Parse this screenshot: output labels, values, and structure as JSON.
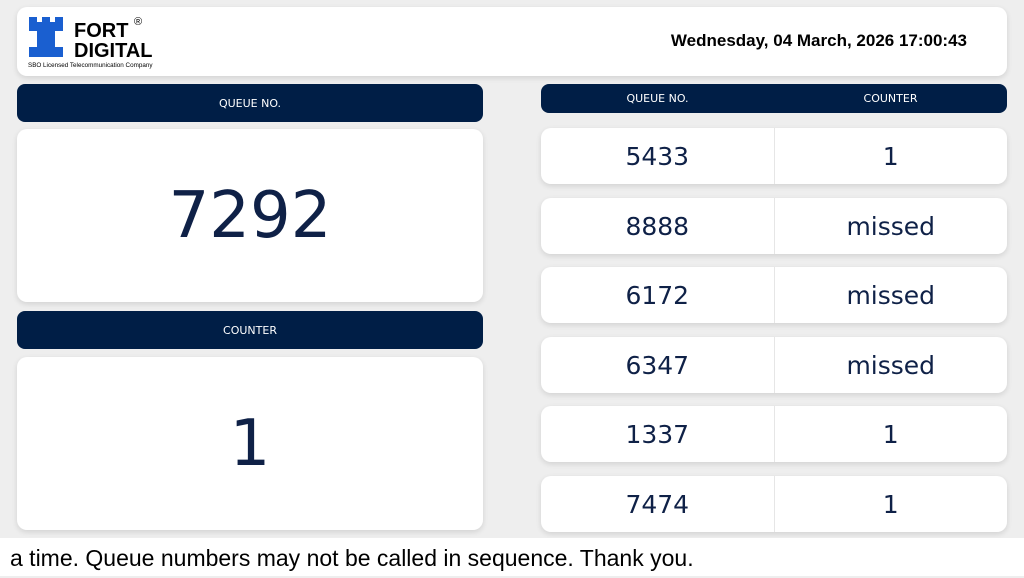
{
  "header": {
    "logo": {
      "line1": "FORT",
      "line2": "DIGITAL",
      "tagline": "SBO Licensed Telecommunication Company",
      "brand_color": "#1a5fd0"
    },
    "datetime": "Wednesday, 04 March, 2026 17:00:43"
  },
  "current": {
    "queue_label": "QUEUE NO.",
    "queue_number": "7292",
    "counter_label": "COUNTER",
    "counter_number": "1"
  },
  "history": {
    "columns": [
      "QUEUE NO.",
      "COUNTER"
    ],
    "rows": [
      {
        "queue": "5433",
        "counter": "1"
      },
      {
        "queue": "8888",
        "counter": "missed"
      },
      {
        "queue": "6172",
        "counter": "missed"
      },
      {
        "queue": "6347",
        "counter": "missed"
      },
      {
        "queue": "1337",
        "counter": "1"
      },
      {
        "queue": "7474",
        "counter": "1"
      }
    ]
  },
  "marquee": "a time. Queue numbers may not be called in sequence. Thank you.",
  "colors": {
    "navy": "#001e46",
    "text": "#0f2147"
  }
}
